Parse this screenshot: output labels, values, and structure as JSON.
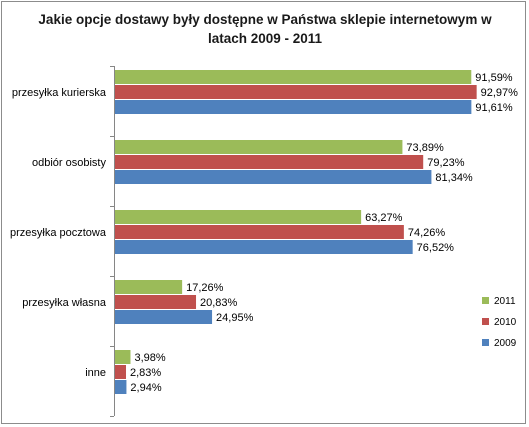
{
  "chart_data": {
    "type": "bar",
    "orientation": "horizontal",
    "title": "Jakie opcje dostawy były dostępne w Państwa sklepie internetowym w latach 2009 - 2011",
    "categories": [
      "przesyłka kurierska",
      "odbiór osobisty",
      "przesyłka pocztowa",
      "przesyłka własna",
      "inne"
    ],
    "series": [
      {
        "name": "2011",
        "color": "#9bbb59",
        "values": [
          91.59,
          73.89,
          63.27,
          17.26,
          3.98
        ],
        "labels": [
          "91,59%",
          "73,89%",
          "63,27%",
          "17,26%",
          "3,98%"
        ]
      },
      {
        "name": "2010",
        "color": "#c0504d",
        "values": [
          92.97,
          79.23,
          74.26,
          20.83,
          2.83
        ],
        "labels": [
          "92,97%",
          "79,23%",
          "74,26%",
          "20,83%",
          "2,83%"
        ]
      },
      {
        "name": "2009",
        "color": "#4f81bd",
        "values": [
          91.61,
          81.34,
          76.52,
          24.95,
          2.94
        ],
        "labels": [
          "91,61%",
          "81,34%",
          "76,52%",
          "24,95%",
          "2,94%"
        ]
      }
    ],
    "xlim": [
      0,
      100
    ],
    "grid": false,
    "legend_position": "right"
  }
}
